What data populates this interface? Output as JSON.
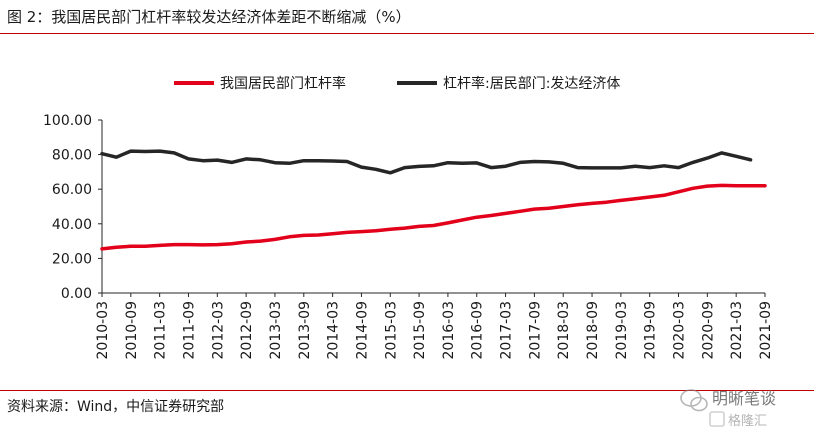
{
  "figure": {
    "title": "图 2：我国居民部门杠杆率较发达经济体差距不断缩减（%）",
    "source": "资料来源：Wind，中信证券研究部"
  },
  "watermark": {
    "line1": "明晰笔谈",
    "line2": "格隆汇"
  },
  "colors": {
    "rule": "#c00000",
    "series_red": "#e3001b",
    "series_black": "#262626",
    "axis": "#262626"
  },
  "chart_data": {
    "type": "line",
    "y_ticks": [
      "100.00",
      "80.00",
      "60.00",
      "40.00",
      "20.00",
      "0.00"
    ],
    "ylim": [
      0,
      100
    ],
    "x_tick_labels": [
      "2010-03",
      "2010-09",
      "2011-03",
      "2011-09",
      "2012-03",
      "2012-09",
      "2013-03",
      "2013-09",
      "2014-03",
      "2014-09",
      "2015-03",
      "2015-09",
      "2016-03",
      "2016-09",
      "2017-03",
      "2017-09",
      "2018-03",
      "2018-09",
      "2019-03",
      "2019-09",
      "2020-03",
      "2020-09",
      "2021-03",
      "2021-09"
    ],
    "x": [
      "2010-03",
      "2010-06",
      "2010-09",
      "2010-12",
      "2011-03",
      "2011-06",
      "2011-09",
      "2011-12",
      "2012-03",
      "2012-06",
      "2012-09",
      "2012-12",
      "2013-03",
      "2013-06",
      "2013-09",
      "2013-12",
      "2014-03",
      "2014-06",
      "2014-09",
      "2014-12",
      "2015-03",
      "2015-06",
      "2015-09",
      "2015-12",
      "2016-03",
      "2016-06",
      "2016-09",
      "2016-12",
      "2017-03",
      "2017-06",
      "2017-09",
      "2017-12",
      "2018-03",
      "2018-06",
      "2018-09",
      "2018-12",
      "2019-03",
      "2019-06",
      "2019-09",
      "2019-12",
      "2020-03",
      "2020-06",
      "2020-09",
      "2020-12",
      "2021-03",
      "2021-06",
      "2021-09"
    ],
    "legend_position": "top",
    "grid": false,
    "series": [
      {
        "name": "我国居民部门杠杆率",
        "color": "#e3001b",
        "values": [
          25.5,
          26.5,
          27.0,
          27.0,
          27.5,
          28.0,
          28.0,
          27.8,
          28.0,
          28.5,
          29.5,
          30.0,
          31.0,
          32.5,
          33.3,
          33.5,
          34.3,
          35.0,
          35.5,
          36.0,
          36.8,
          37.5,
          38.5,
          39.0,
          40.5,
          42.2,
          43.8,
          44.8,
          46.0,
          47.2,
          48.5,
          49.0,
          50.0,
          51.0,
          51.8,
          52.5,
          53.5,
          54.5,
          55.5,
          56.5,
          58.5,
          60.5,
          61.8,
          62.2,
          62.0,
          62.0,
          62.0
        ]
      },
      {
        "name": "杠杆率:居民部门:发达经济体",
        "color": "#262626",
        "values": [
          80.5,
          78.5,
          82.0,
          81.8,
          82.0,
          81.0,
          77.5,
          76.5,
          76.8,
          75.5,
          77.5,
          77.0,
          75.3,
          75.0,
          76.5,
          76.5,
          76.3,
          76.0,
          72.8,
          71.5,
          69.5,
          72.5,
          73.2,
          73.5,
          75.3,
          75.0,
          75.2,
          72.5,
          73.3,
          75.5,
          76.0,
          75.8,
          75.0,
          72.5,
          72.3,
          72.3,
          72.3,
          73.3,
          72.5,
          73.5,
          72.5,
          75.5,
          78.0,
          81.0,
          79.0,
          77.0,
          null
        ]
      }
    ]
  }
}
